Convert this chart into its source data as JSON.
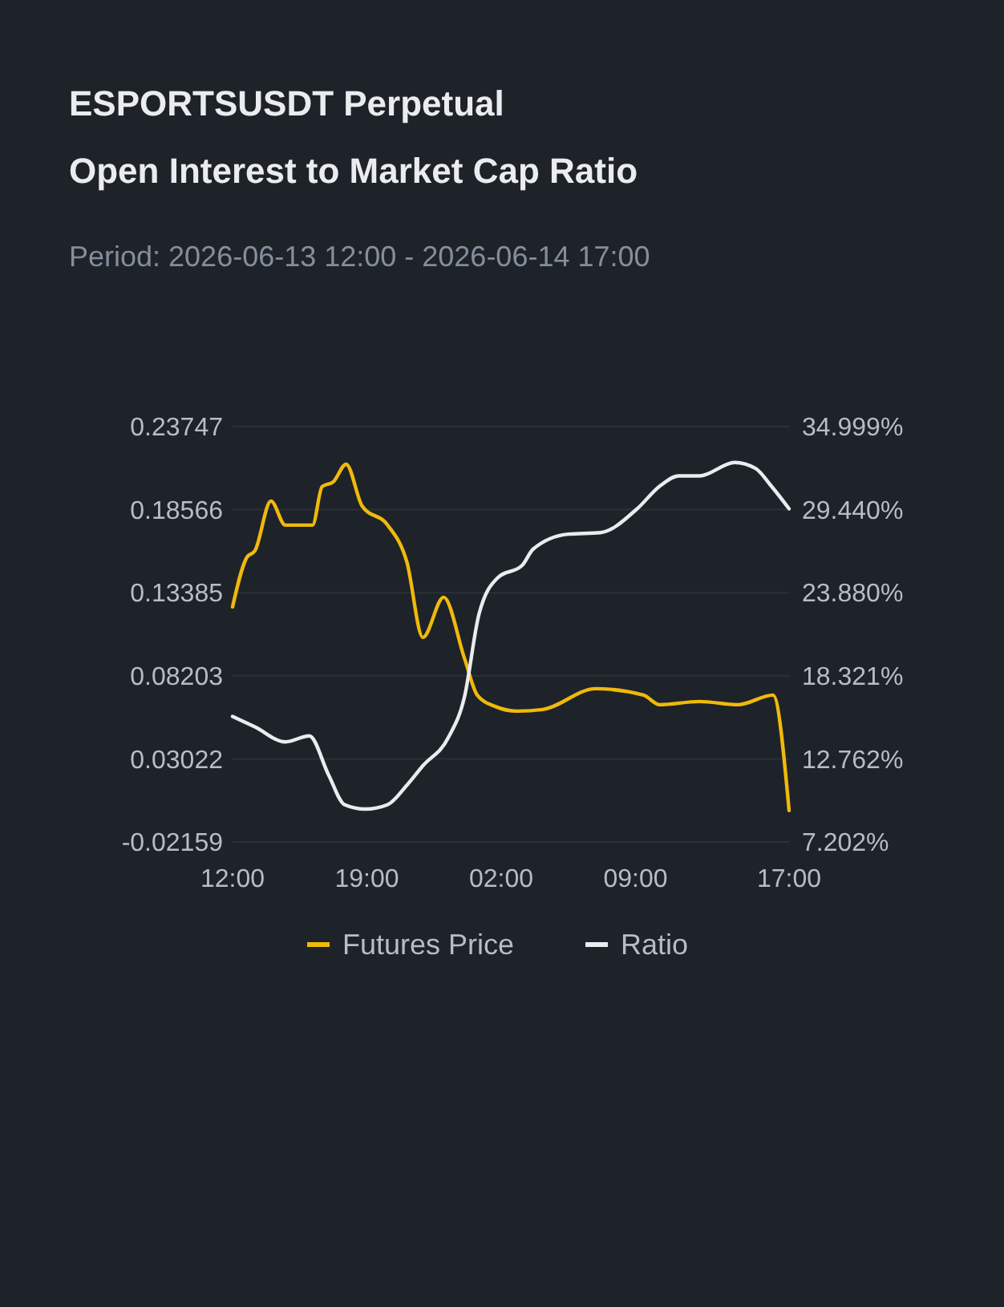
{
  "chart_data": {
    "type": "line",
    "title": "ESPORTSUSDT Perpetual\nOpen Interest to Market Cap Ratio",
    "subtitle": "Period: 2026-06-13 12:00 - 2026-06-14 17:00",
    "xlim": [
      "2026-06-13T12:00",
      "2026-06-14T17:00"
    ],
    "xticks": [
      {
        "value": "2026-06-13T12:00",
        "label": "12:00"
      },
      {
        "value": "2026-06-13T19:00",
        "label": "19:00"
      },
      {
        "value": "2026-06-14T02:00",
        "label": "02:00"
      },
      {
        "value": "2026-06-14T09:00",
        "label": "09:00"
      },
      {
        "value": "2026-06-14T17:00",
        "label": "17:00"
      }
    ],
    "ylim": [
      -0.02159,
      0.23747
    ],
    "yticks": [
      -0.02159,
      0.03022,
      0.08203,
      0.13385,
      0.18566,
      0.23747
    ],
    "y2lim": [
      7.202,
      34.999
    ],
    "y2ticks": [
      {
        "value": 7.202,
        "label": "7.202%"
      },
      {
        "value": 12.762,
        "label": "12.762%"
      },
      {
        "value": 18.321,
        "label": "18.321%"
      },
      {
        "value": 23.88,
        "label": "23.880%"
      },
      {
        "value": 29.44,
        "label": "29.440%"
      },
      {
        "value": 34.999,
        "label": "34.999%"
      }
    ],
    "grid": "y",
    "legend": "bottom",
    "series": [
      {
        "name": "Futures Price",
        "color": "#f0b90b",
        "x": [
          "2026-06-13T12:00",
          "2026-06-13T12:45",
          "2026-06-13T13:10",
          "2026-06-13T14:00",
          "2026-06-13T14:45",
          "2026-06-13T16:10",
          "2026-06-13T16:40",
          "2026-06-13T17:15",
          "2026-06-13T17:55",
          "2026-06-13T18:45",
          "2026-06-13T20:05",
          "2026-06-13T21:05",
          "2026-06-13T21:55",
          "2026-06-13T23:00",
          "2026-06-14T00:05",
          "2026-06-14T00:45",
          "2026-06-14T01:40",
          "2026-06-14T02:50",
          "2026-06-14T04:10",
          "2026-06-14T06:55",
          "2026-06-14T09:25",
          "2026-06-14T10:15",
          "2026-06-14T12:20",
          "2026-06-14T14:20",
          "2026-06-14T16:10",
          "2026-06-14T17:00"
        ],
        "values": [
          0.125,
          0.156,
          0.16,
          0.191,
          0.176,
          0.176,
          0.2,
          0.203,
          0.214,
          0.188,
          0.176,
          0.153,
          0.106,
          0.131,
          0.093,
          0.07,
          0.063,
          0.06,
          0.061,
          0.074,
          0.07,
          0.064,
          0.066,
          0.064,
          0.07,
          -0.002
        ]
      },
      {
        "name": "Ratio",
        "color": "#eaecef",
        "axis": "y2",
        "x": [
          "2026-06-13T12:00",
          "2026-06-13T13:10",
          "2026-06-13T14:45",
          "2026-06-13T16:00",
          "2026-06-13T17:00",
          "2026-06-13T17:50",
          "2026-06-13T18:55",
          "2026-06-13T20:05",
          "2026-06-13T21:05",
          "2026-06-13T21:55",
          "2026-06-13T23:15",
          "2026-06-14T00:05",
          "2026-06-14T00:50",
          "2026-06-14T01:50",
          "2026-06-14T03:05",
          "2026-06-14T03:40",
          "2026-06-14T05:30",
          "2026-06-14T07:10",
          "2026-06-14T09:05",
          "2026-06-14T10:15",
          "2026-06-14T11:15",
          "2026-06-14T12:20",
          "2026-06-14T14:10",
          "2026-06-14T15:15",
          "2026-06-14T16:05",
          "2026-06-14T17:00"
        ],
        "values": [
          15.6,
          14.9,
          13.9,
          14.3,
          11.7,
          9.7,
          9.4,
          9.7,
          11.0,
          12.3,
          14.2,
          16.9,
          22.4,
          24.9,
          25.7,
          26.8,
          27.8,
          27.9,
          29.5,
          31.0,
          31.7,
          31.7,
          32.6,
          32.2,
          31.0,
          29.5
        ]
      }
    ]
  }
}
